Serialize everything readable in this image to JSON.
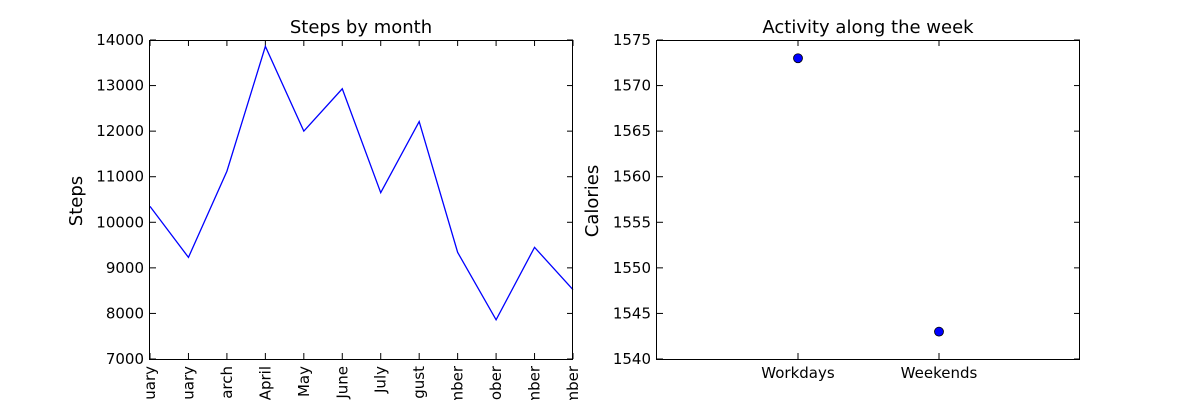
{
  "chart_data": [
    {
      "type": "line",
      "title": "Steps by month",
      "xlabel": "",
      "ylabel": "Steps",
      "ylim": [
        7000,
        14000
      ],
      "yticks": [
        7000,
        8000,
        9000,
        10000,
        11000,
        12000,
        13000,
        14000
      ],
      "categories": [
        "uary",
        "uary",
        "arch",
        "April",
        "May",
        "June",
        "July",
        "ugust",
        "mber",
        "ober",
        "mber",
        "mber"
      ],
      "series": [
        {
          "values": [
            10350,
            9230,
            11120,
            13860,
            12000,
            12930,
            10650,
            12210,
            9340,
            7860,
            9450,
            8520
          ]
        }
      ],
      "color": "#0000ff"
    },
    {
      "type": "scatter",
      "title": "Activity along the week",
      "xlabel": "",
      "ylabel": "Calories",
      "ylim": [
        1540,
        1575
      ],
      "yticks": [
        1540,
        1545,
        1550,
        1555,
        1560,
        1565,
        1570,
        1575
      ],
      "categories": [
        "Workdays",
        "Weekends"
      ],
      "series": [
        {
          "values": [
            1573,
            1543
          ]
        }
      ],
      "color": "#0000ff"
    }
  ]
}
